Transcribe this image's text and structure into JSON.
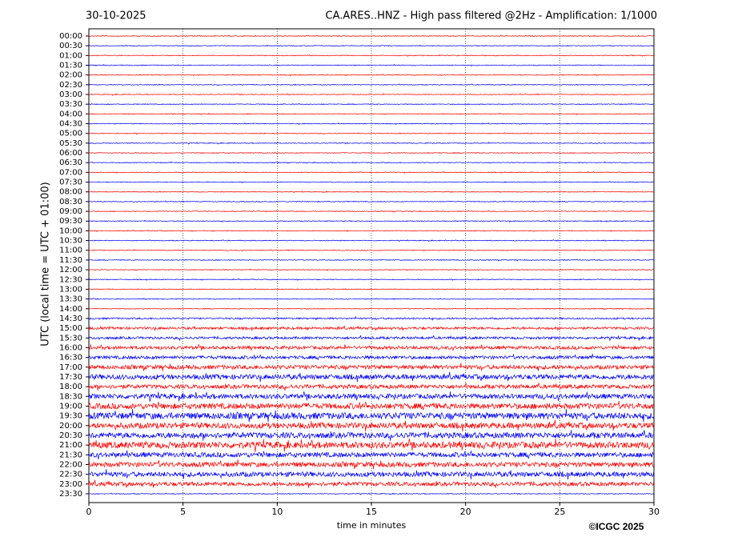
{
  "chart_data": {
    "type": "helicorder",
    "date": "30-10-2025",
    "title": "CA.ARES..HNZ - High pass filtered @2Hz - Amplification: 1/1000",
    "xlabel": "time in minutes",
    "ylabel": "UTC (local time = UTC + 01:00)",
    "copyright": "©ICGC 2025",
    "xlim": [
      0,
      30
    ],
    "xticks": [
      0,
      5,
      10,
      15,
      20,
      25,
      30
    ],
    "grid": true,
    "colors": [
      "#ff0000",
      "#0000ff"
    ],
    "categories": [
      "00:00",
      "00:30",
      "01:00",
      "01:30",
      "02:00",
      "02:30",
      "03:00",
      "03:30",
      "04:00",
      "04:30",
      "05:00",
      "05:30",
      "06:00",
      "06:30",
      "07:00",
      "07:30",
      "08:00",
      "08:30",
      "09:00",
      "09:30",
      "10:00",
      "10:30",
      "11:00",
      "11:30",
      "12:00",
      "12:30",
      "13:00",
      "13:30",
      "14:00",
      "14:30",
      "15:00",
      "15:30",
      "16:00",
      "16:30",
      "17:00",
      "17:30",
      "18:00",
      "18:30",
      "19:00",
      "19:30",
      "20:00",
      "20:30",
      "21:00",
      "21:30",
      "22:00",
      "22:30",
      "23:00",
      "23:30"
    ],
    "amplitudes": [
      0.5,
      0.5,
      0.5,
      0.5,
      0.5,
      0.5,
      0.5,
      0.5,
      0.5,
      0.5,
      0.5,
      0.5,
      0.5,
      0.5,
      0.5,
      0.5,
      0.5,
      0.5,
      0.5,
      0.5,
      0.5,
      0.5,
      0.5,
      0.5,
      0.5,
      0.5,
      0.5,
      0.5,
      0.5,
      1,
      1.5,
      1.5,
      2,
      2,
      2.5,
      3,
      2.5,
      3,
      3.5,
      4,
      3.5,
      3.5,
      4,
      3,
      3,
      3,
      2.5,
      0.5
    ]
  }
}
